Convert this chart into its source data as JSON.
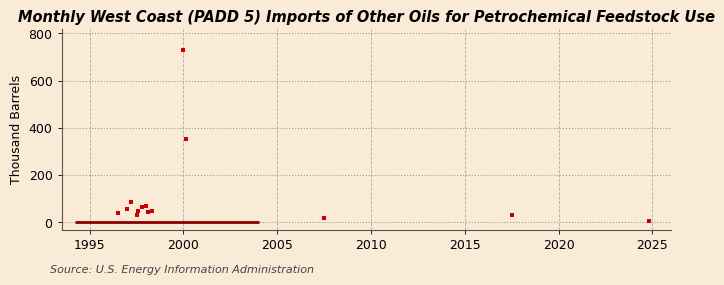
{
  "title": "Monthly West Coast (PADD 5) Imports of Other Oils for Petrochemical Feedstock Use",
  "ylabel": "Thousand Barrels",
  "source": "Source: U.S. Energy Information Administration",
  "background_color": "#faebd7",
  "scatter_color": "#cc0000",
  "line_color": "#8b0000",
  "xlim": [
    1993.5,
    2026
  ],
  "ylim": [
    -30,
    820
  ],
  "yticks": [
    0,
    200,
    400,
    600,
    800
  ],
  "xticks": [
    1995,
    2000,
    2005,
    2010,
    2015,
    2020,
    2025
  ],
  "scatter_points": [
    [
      1996.5,
      40
    ],
    [
      1997.0,
      55
    ],
    [
      1997.2,
      85
    ],
    [
      1997.5,
      30
    ],
    [
      1997.6,
      50
    ],
    [
      1997.8,
      65
    ],
    [
      1998.0,
      70
    ],
    [
      1998.1,
      45
    ],
    [
      1998.3,
      50
    ],
    [
      2000.0,
      730
    ],
    [
      2000.15,
      355
    ],
    [
      2007.5,
      18
    ],
    [
      2017.5,
      32
    ],
    [
      2024.8,
      4
    ]
  ],
  "line_points_x": [
    1994.2,
    2004.0
  ],
  "line_y": 0,
  "title_fontsize": 10.5,
  "axis_fontsize": 9,
  "tick_fontsize": 9,
  "source_fontsize": 8
}
